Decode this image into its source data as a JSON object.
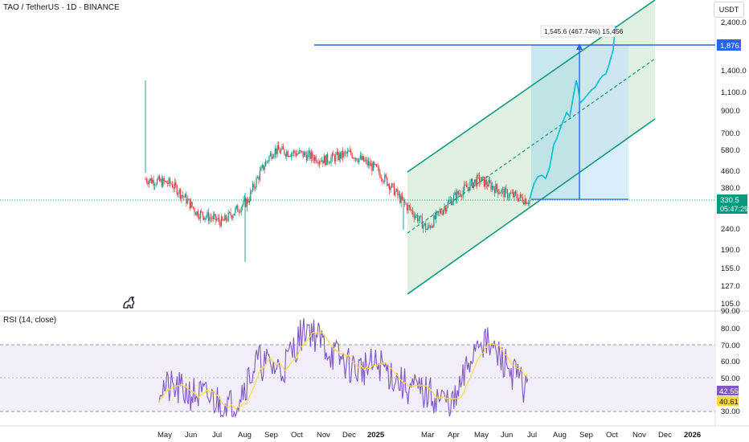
{
  "header": {
    "symbol": "TAO / TetherUS",
    "interval": "1D",
    "exchange": "BINANCE"
  },
  "currency": "USDT",
  "price_axis": {
    "ticks": [
      "2,400.0",
      "1,876.1",
      "1,400.0",
      "1,100.0",
      "900.0",
      "700.0",
      "580.0",
      "460.0",
      "380.0",
      "330.5",
      "240.0",
      "190.0",
      "155.0",
      "127.0",
      "105.0"
    ]
  },
  "last_price": {
    "value": "330.5",
    "countdown": "05:47:29",
    "color": "#089981"
  },
  "target_price": {
    "value": "1,876.1",
    "color": "#2962ff"
  },
  "projection_label": "1,545.6 (467.74%) 15,456",
  "rsi": {
    "title": "RSI (14, close)",
    "ticks": [
      "90.00",
      "80.00",
      "70.00",
      "60.00",
      "50.00",
      "40.00",
      "30.00"
    ],
    "value": "42.55",
    "ma_value": "40.61",
    "band_upper": 70,
    "band_lower": 30,
    "mid": 50,
    "line_color": "#7e57c2",
    "ma_color": "#fdd835"
  },
  "time_axis": [
    "May",
    "Jun",
    "Jul",
    "Aug",
    "Sep",
    "Oct",
    "Nov",
    "Dec",
    "2025",
    "Mar",
    "Apr",
    "May",
    "Jun",
    "Jul",
    "Aug",
    "Sep",
    "Oct",
    "Nov",
    "Dec",
    "2026"
  ],
  "colors": {
    "up": "#089981",
    "down": "#f23645",
    "channel": "#089981",
    "projection": "#00bcd4",
    "target_line": "#2962ff"
  },
  "chart_data": {
    "type": "candlestick",
    "series": [
      {
        "name": "TAO / TetherUS",
        "note_points": "approximate monthly closes",
        "x": [
          "2024-04",
          "2024-05",
          "2024-06",
          "2024-07",
          "2024-08",
          "2024-09",
          "2024-10",
          "2024-11",
          "2024-12",
          "2025-01",
          "2025-02",
          "2025-03",
          "2025-04",
          "2025-05",
          "2025-06",
          "2025-07"
        ],
        "values": [
          420,
          400,
          290,
          260,
          330,
          580,
          560,
          520,
          560,
          470,
          330,
          240,
          340,
          420,
          360,
          330.5
        ]
      },
      {
        "name": "projection",
        "x": [
          "2025-07",
          "2025-08",
          "2025-09",
          "2025-10"
        ],
        "values": [
          330.5,
          600,
          1100,
          1876.1
        ]
      }
    ],
    "rsi_series": {
      "x": [
        "2024-04",
        "2024-05",
        "2024-06",
        "2024-07",
        "2024-08",
        "2024-09",
        "2024-10",
        "2024-11",
        "2024-12",
        "2025-01",
        "2025-02",
        "2025-03",
        "2025-04",
        "2025-05",
        "2025-06",
        "2025-07"
      ],
      "values": [
        45,
        42,
        38,
        33,
        60,
        55,
        82,
        65,
        55,
        58,
        45,
        40,
        34,
        75,
        60,
        42.55
      ]
    },
    "ylim": [
      100,
      2600
    ],
    "log_scale": true,
    "grid": false
  }
}
